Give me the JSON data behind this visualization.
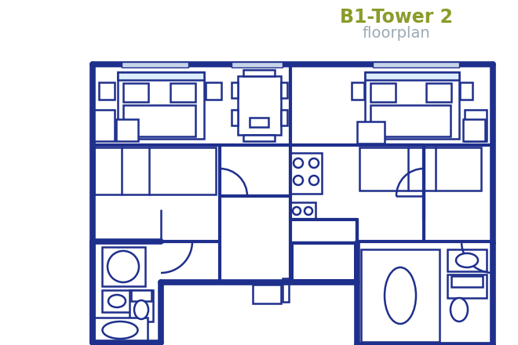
{
  "title1": "B1-Tower 2",
  "title2": "floorplan",
  "title1_color": "#8B9B2A",
  "title2_color": "#9BAAB5",
  "wall_color": "#1E2F8C",
  "bg_color": "#FFFFFF",
  "fig_width": 6.6,
  "fig_height": 4.4
}
